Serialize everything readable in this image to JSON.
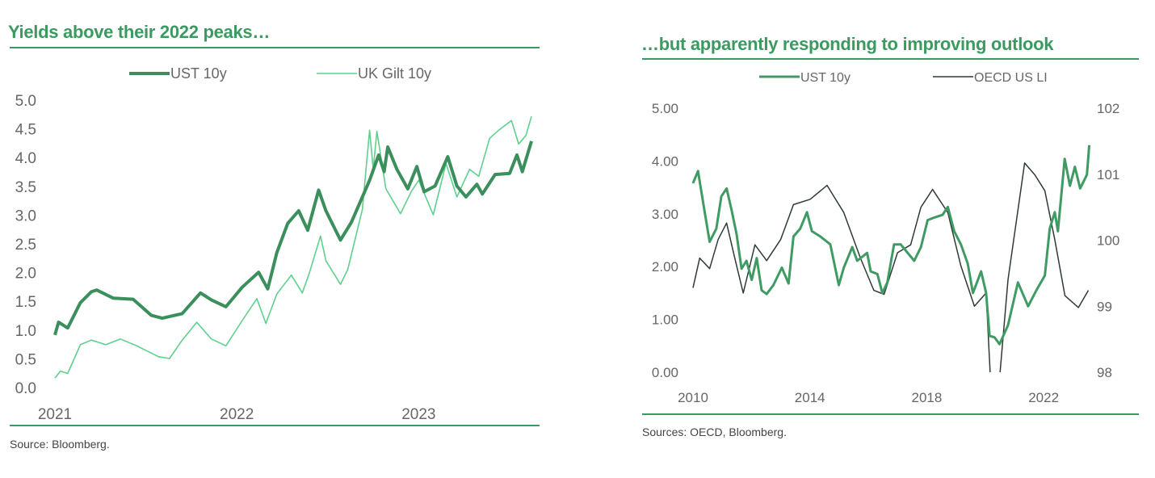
{
  "chart_data": [
    {
      "type": "line",
      "title": "Yields above their 2022 peaks…",
      "source": "Source: Bloomberg.",
      "xlim": [
        2021.0,
        2023.62
      ],
      "ylim": [
        0,
        5
      ],
      "xticks": [
        2021,
        2022,
        2023
      ],
      "xtick_labels": [
        "2021",
        "2022",
        "2023"
      ],
      "yticks": [
        0,
        0.5,
        1,
        1.5,
        2,
        2.5,
        3,
        3.5,
        4,
        4.5,
        5
      ],
      "ytick_labels": [
        "0.0",
        "0.5",
        "1.0",
        "1.5",
        "2.0",
        "2.5",
        "3.0",
        "3.5",
        "4.0",
        "4.5",
        "5.0"
      ],
      "legend_position": "top-center",
      "series": [
        {
          "name": "UST 10y",
          "color": "#3a8f5c",
          "x": [
            2021.0,
            2021.02,
            2021.07,
            2021.14,
            2021.2,
            2021.23,
            2021.32,
            2021.43,
            2021.53,
            2021.59,
            2021.7,
            2021.8,
            2021.86,
            2021.94,
            2022.03,
            2022.12,
            2022.17,
            2022.22,
            2022.28,
            2022.34,
            2022.39,
            2022.45,
            2022.49,
            2022.57,
            2022.63,
            2022.73,
            2022.78,
            2022.81,
            2022.83,
            2022.88,
            2022.94,
            2022.99,
            2023.03,
            2023.09,
            2023.16,
            2023.21,
            2023.26,
            2023.32,
            2023.35,
            2023.42,
            2023.5,
            2023.54,
            2023.57,
            2023.62
          ],
          "y": [
            0.93,
            1.15,
            1.05,
            1.49,
            1.68,
            1.71,
            1.57,
            1.55,
            1.27,
            1.22,
            1.3,
            1.66,
            1.54,
            1.42,
            1.76,
            2.02,
            1.73,
            2.36,
            2.87,
            3.09,
            2.75,
            3.45,
            3.09,
            2.58,
            2.89,
            3.62,
            4.06,
            3.77,
            4.2,
            3.81,
            3.47,
            3.86,
            3.42,
            3.52,
            4.03,
            3.52,
            3.33,
            3.55,
            3.38,
            3.72,
            3.74,
            4.06,
            3.77,
            4.3
          ]
        },
        {
          "name": "UK Gilt 10y",
          "color": "#5ed08e",
          "x": [
            2021.0,
            2021.03,
            2021.07,
            2021.14,
            2021.2,
            2021.28,
            2021.36,
            2021.45,
            2021.57,
            2021.63,
            2021.7,
            2021.78,
            2021.86,
            2021.94,
            2022.03,
            2022.11,
            2022.16,
            2022.22,
            2022.3,
            2022.36,
            2022.4,
            2022.46,
            2022.49,
            2022.57,
            2022.61,
            2022.69,
            2022.73,
            2022.75,
            2022.77,
            2022.82,
            2022.9,
            2022.96,
            2023.0,
            2023.08,
            2023.15,
            2023.21,
            2023.28,
            2023.33,
            2023.39,
            2023.44,
            2023.51,
            2023.55,
            2023.59,
            2023.62
          ],
          "y": [
            0.18,
            0.3,
            0.26,
            0.76,
            0.84,
            0.76,
            0.86,
            0.74,
            0.55,
            0.52,
            0.84,
            1.15,
            0.86,
            0.74,
            1.18,
            1.56,
            1.13,
            1.64,
            1.97,
            1.66,
            2.02,
            2.65,
            2.22,
            1.81,
            2.07,
            3.11,
            4.49,
            3.81,
            4.47,
            3.47,
            3.04,
            3.43,
            3.62,
            3.02,
            3.91,
            3.33,
            3.81,
            3.69,
            4.35,
            4.49,
            4.66,
            4.25,
            4.4,
            4.73
          ]
        }
      ]
    },
    {
      "type": "line",
      "title": "…but apparently responding to improving outlook",
      "source": "Sources: OECD, Bloomberg.",
      "xlim": [
        2010.0,
        2023.6
      ],
      "ylim": [
        0,
        5
      ],
      "y2lim": [
        98,
        102
      ],
      "xticks": [
        2010,
        2014,
        2018,
        2022
      ],
      "xtick_labels": [
        "2010",
        "2014",
        "2018",
        "2022"
      ],
      "yticks": [
        0,
        1,
        2,
        3,
        4,
        5
      ],
      "ytick_labels": [
        "0.00",
        "1.00",
        "2.00",
        "3.00",
        "4.00",
        "5.00"
      ],
      "y2ticks": [
        98,
        99,
        100,
        101,
        102
      ],
      "y2tick_labels": [
        "98",
        "99",
        "100",
        "101",
        "102"
      ],
      "legend_position": "top-center",
      "series": [
        {
          "name": "UST 10y",
          "axis": "left",
          "color": "#3f9a64",
          "x": [
            2010.0,
            2010.17,
            2010.4,
            2010.57,
            2010.8,
            2010.97,
            2011.15,
            2011.32,
            2011.49,
            2011.66,
            2011.83,
            2012.01,
            2012.18,
            2012.35,
            2012.52,
            2012.75,
            2013.04,
            2013.27,
            2013.44,
            2013.67,
            2013.9,
            2014.07,
            2014.36,
            2014.7,
            2014.99,
            2015.16,
            2015.45,
            2015.62,
            2015.96,
            2016.08,
            2016.31,
            2016.48,
            2016.65,
            2016.88,
            2017.11,
            2017.57,
            2017.8,
            2018.03,
            2018.26,
            2018.54,
            2018.72,
            2018.94,
            2019.17,
            2019.4,
            2019.58,
            2019.86,
            2020.03,
            2020.15,
            2020.32,
            2020.49,
            2020.78,
            2021.12,
            2021.47,
            2021.75,
            2022.04,
            2022.21,
            2022.38,
            2022.49,
            2022.72,
            2022.9,
            2023.07,
            2023.25,
            2023.48,
            2023.56
          ],
          "y": [
            3.58,
            3.81,
            3.03,
            2.47,
            2.72,
            3.33,
            3.48,
            3.07,
            2.62,
            1.96,
            2.11,
            1.75,
            2.16,
            1.55,
            1.48,
            1.65,
            1.98,
            1.68,
            2.57,
            2.72,
            3.03,
            2.67,
            2.57,
            2.42,
            1.65,
            1.98,
            2.37,
            2.11,
            2.26,
            1.91,
            1.86,
            1.5,
            1.7,
            2.42,
            2.42,
            2.11,
            2.37,
            2.88,
            2.93,
            2.98,
            3.13,
            2.67,
            2.42,
            2.06,
            1.5,
            1.91,
            1.5,
            0.69,
            0.66,
            0.53,
            0.89,
            1.7,
            1.25,
            1.55,
            1.83,
            2.72,
            3.03,
            2.67,
            4.04,
            3.53,
            3.89,
            3.48,
            3.74,
            4.3
          ]
        },
        {
          "name": "OECD US LI",
          "axis": "right",
          "color": "#2e3b33",
          "x": [
            2010.0,
            2010.23,
            2010.57,
            2010.86,
            2011.15,
            2011.43,
            2011.72,
            2012.12,
            2012.52,
            2013.0,
            2013.44,
            2014.01,
            2014.59,
            2015.16,
            2015.73,
            2016.19,
            2016.54,
            2017.0,
            2017.45,
            2017.8,
            2018.2,
            2018.72,
            2019.17,
            2019.63,
            2020.03,
            2020.18,
            2020.32,
            2020.49,
            2020.78,
            2021.35,
            2021.7,
            2022.04,
            2022.38,
            2022.73,
            2023.19,
            2023.53
          ],
          "y": [
            99.28,
            99.73,
            99.57,
            100.01,
            100.26,
            99.73,
            99.2,
            99.93,
            99.69,
            100.01,
            100.54,
            100.62,
            100.83,
            100.42,
            99.73,
            99.24,
            99.18,
            99.81,
            99.93,
            100.5,
            100.77,
            100.42,
            99.61,
            99.0,
            99.2,
            97.9,
            97.9,
            97.9,
            99.4,
            101.17,
            100.99,
            100.75,
            100.01,
            99.16,
            98.98,
            99.24
          ]
        }
      ]
    }
  ]
}
